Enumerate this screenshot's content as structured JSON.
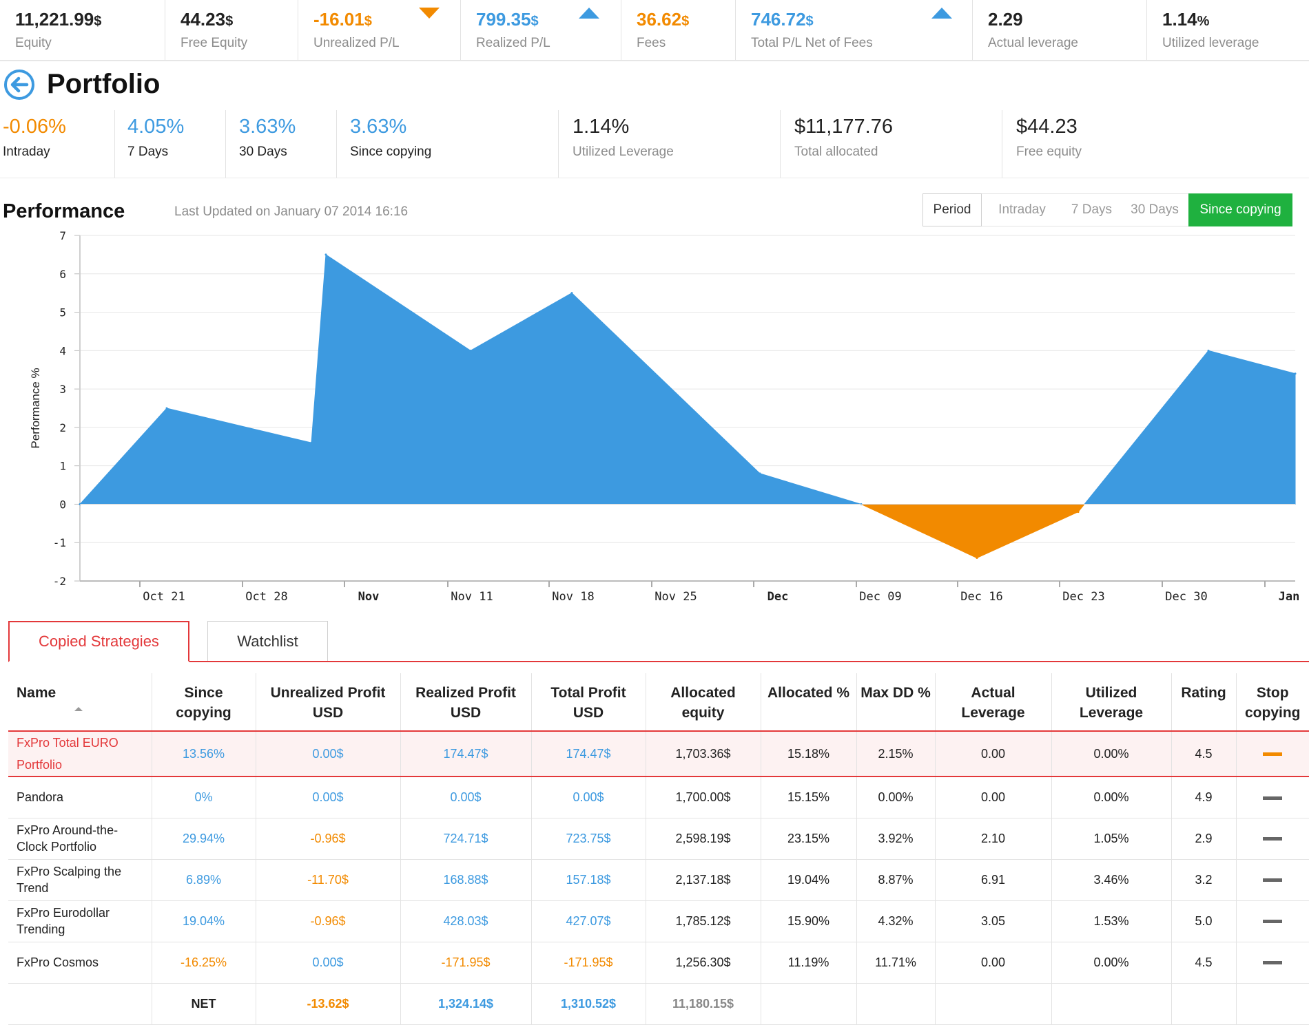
{
  "topbar": [
    {
      "value": "11,221.99",
      "unit": "$",
      "label": "Equity",
      "color": "black",
      "arrow": ""
    },
    {
      "value": "44.23",
      "unit": "$",
      "label": "Free Equity",
      "color": "black",
      "arrow": ""
    },
    {
      "value": "-16.01",
      "unit": "$",
      "label": "Unrealized P/L",
      "color": "orange",
      "arrow": "down"
    },
    {
      "value": "799.35",
      "unit": "$",
      "label": "Realized P/L",
      "color": "blue",
      "arrow": "up"
    },
    {
      "value": "36.62",
      "unit": "$",
      "label": "Fees",
      "color": "orange",
      "arrow": ""
    },
    {
      "value": "746.72",
      "unit": "$",
      "label": "Total P/L Net of Fees",
      "color": "blue",
      "arrow": "up"
    },
    {
      "value": "2.29",
      "unit": "",
      "label": "Actual leverage",
      "color": "black",
      "arrow": ""
    },
    {
      "value": "1.14",
      "unit": "%",
      "label": "Utilized leverage",
      "color": "black",
      "arrow": ""
    }
  ],
  "page_title": "Portfolio",
  "portfolio_stats": [
    {
      "value": "-0.06%",
      "label": "Intraday",
      "color": "orange"
    },
    {
      "value": "4.05%",
      "label": "7 Days",
      "color": "blue"
    },
    {
      "value": "3.63%",
      "label": "30 Days",
      "color": "blue"
    },
    {
      "value": "3.63%",
      "label": "Since copying",
      "color": "blue"
    },
    {
      "value": "1.14%",
      "label": "Utilized Leverage",
      "color": "black"
    },
    {
      "value": "$11,177.76",
      "label": "Total allocated",
      "color": "black"
    },
    {
      "value": "$44.23",
      "label": "Free equity",
      "color": "black"
    }
  ],
  "performance": {
    "title": "Performance",
    "last_updated": "Last Updated on January 07 2014 16:16",
    "period_label": "Period",
    "period_options": [
      "Intraday",
      "7 Days",
      "30 Days",
      "Since copying"
    ],
    "active_period": "Since copying"
  },
  "chart_data": {
    "type": "area",
    "ylabel": "Performance %",
    "ylim": [
      -2,
      7
    ],
    "yticks": [
      7,
      6,
      5,
      4,
      3,
      2,
      1,
      0,
      -1,
      -2
    ],
    "xticks": [
      {
        "label": "Oct 21",
        "major": false
      },
      {
        "label": "Oct 28",
        "major": false
      },
      {
        "label": "Nov",
        "major": true
      },
      {
        "label": "Nov 11",
        "major": false
      },
      {
        "label": "Nov 18",
        "major": false
      },
      {
        "label": "Nov 25",
        "major": false
      },
      {
        "label": "Dec",
        "major": true
      },
      {
        "label": "Dec 09",
        "major": false
      },
      {
        "label": "Dec 16",
        "major": false
      },
      {
        "label": "Dec 23",
        "major": false
      },
      {
        "label": "Dec 30",
        "major": false
      },
      {
        "label": "Jan",
        "major": true
      }
    ],
    "x_domain": [
      "2013-10-15",
      "2014-01-07"
    ],
    "points": [
      {
        "x": "2013-10-15",
        "y": 0
      },
      {
        "x": "2013-10-21",
        "y": 2.5
      },
      {
        "x": "2013-10-31",
        "y": 1.6
      },
      {
        "x": "2013-11-01",
        "y": 6.5
      },
      {
        "x": "2013-11-11",
        "y": 4.0
      },
      {
        "x": "2013-11-18",
        "y": 5.5
      },
      {
        "x": "2013-12-01",
        "y": 0.8
      },
      {
        "x": "2013-12-08",
        "y": 0
      },
      {
        "x": "2013-12-16",
        "y": -1.4
      },
      {
        "x": "2013-12-23",
        "y": -0.2
      },
      {
        "x": "2014-01-01",
        "y": 4.0
      },
      {
        "x": "2014-01-07",
        "y": 3.4
      }
    ],
    "positive_color": "#3d9ae0",
    "negative_color": "#f28a00",
    "grid": true
  },
  "tabs": [
    "Copied Strategies",
    "Watchlist"
  ],
  "table": {
    "headers": [
      "Name",
      "Since copying",
      "Unrealized Profit USD",
      "Realized Profit USD",
      "Total Profit USD",
      "Allocated equity",
      "Allocated %",
      "Max DD %",
      "Actual Leverage",
      "Utilized Leverage",
      "Rating",
      "Stop copying"
    ],
    "rows": [
      {
        "name": "FxPro Total EURO Portfolio",
        "since": "13.56%",
        "since_c": "blue",
        "unreal": "0.00$",
        "unreal_c": "blue",
        "real": "174.47$",
        "real_c": "blue",
        "total": "174.47$",
        "total_c": "blue",
        "alloc": "1,703.36$",
        "alloc_pct": "15.18%",
        "maxdd": "2.15%",
        "actual": "0.00",
        "utilized": "0.00%",
        "rating": "4.5",
        "highlight": true
      },
      {
        "name": "Pandora",
        "since": "0%",
        "since_c": "blue",
        "unreal": "0.00$",
        "unreal_c": "blue",
        "real": "0.00$",
        "real_c": "blue",
        "total": "0.00$",
        "total_c": "blue",
        "alloc": "1,700.00$",
        "alloc_pct": "15.15%",
        "maxdd": "0.00%",
        "actual": "0.00",
        "utilized": "0.00%",
        "rating": "4.9",
        "highlight": false
      },
      {
        "name": "FxPro Around-the-Clock Portfolio",
        "since": "29.94%",
        "since_c": "blue",
        "unreal": "-0.96$",
        "unreal_c": "orange",
        "real": "724.71$",
        "real_c": "blue",
        "total": "723.75$",
        "total_c": "blue",
        "alloc": "2,598.19$",
        "alloc_pct": "23.15%",
        "maxdd": "3.92%",
        "actual": "2.10",
        "utilized": "1.05%",
        "rating": "2.9",
        "highlight": false
      },
      {
        "name": "FxPro Scalping the Trend",
        "since": "6.89%",
        "since_c": "blue",
        "unreal": "-11.70$",
        "unreal_c": "orange",
        "real": "168.88$",
        "real_c": "blue",
        "total": "157.18$",
        "total_c": "blue",
        "alloc": "2,137.18$",
        "alloc_pct": "19.04%",
        "maxdd": "8.87%",
        "actual": "6.91",
        "utilized": "3.46%",
        "rating": "3.2",
        "highlight": false
      },
      {
        "name": "FxPro Eurodollar Trending",
        "since": "19.04%",
        "since_c": "blue",
        "unreal": "-0.96$",
        "unreal_c": "orange",
        "real": "428.03$",
        "real_c": "blue",
        "total": "427.07$",
        "total_c": "blue",
        "alloc": "1,785.12$",
        "alloc_pct": "15.90%",
        "maxdd": "4.32%",
        "actual": "3.05",
        "utilized": "1.53%",
        "rating": "5.0",
        "highlight": false
      },
      {
        "name": "FxPro Cosmos",
        "since": "-16.25%",
        "since_c": "orange",
        "unreal": "0.00$",
        "unreal_c": "blue",
        "real": "-171.95$",
        "real_c": "orange",
        "total": "-171.95$",
        "total_c": "orange",
        "alloc": "1,256.30$",
        "alloc_pct": "11.19%",
        "maxdd": "11.71%",
        "actual": "0.00",
        "utilized": "0.00%",
        "rating": "4.5",
        "highlight": false
      }
    ],
    "net": {
      "label": "NET",
      "unreal": "-13.62$",
      "real": "1,324.14$",
      "total": "1,310.52$",
      "alloc": "11,180.15$"
    }
  }
}
